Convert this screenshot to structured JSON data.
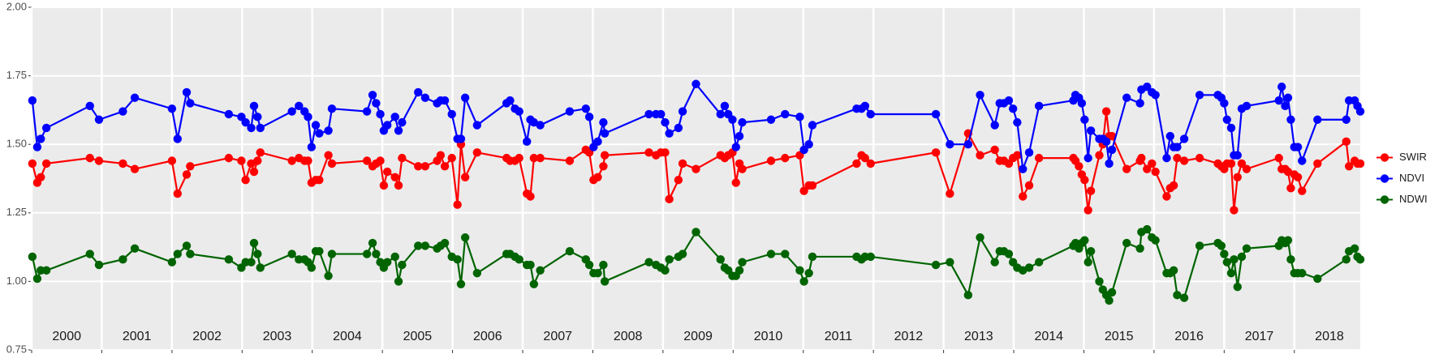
{
  "chart_data": {
    "type": "line",
    "x": [
      2000.01,
      2000.08,
      2000.13,
      2000.21,
      2000.83,
      2000.96,
      2001.3,
      2001.47,
      2002.0,
      2002.08,
      2002.21,
      2002.26,
      2002.81,
      2002.99,
      2003.05,
      2003.13,
      2003.17,
      2003.22,
      2003.26,
      2003.71,
      2003.81,
      2003.89,
      2003.94,
      2003.99,
      2004.05,
      2004.1,
      2004.23,
      2004.28,
      2004.78,
      2004.86,
      2004.91,
      2004.97,
      2005.02,
      2005.07,
      2005.18,
      2005.23,
      2005.28,
      2005.51,
      2005.61,
      2005.78,
      2005.83,
      2005.89,
      2005.99,
      2006.07,
      2006.12,
      2006.18,
      2006.35,
      2006.77,
      2006.82,
      2006.89,
      2006.95,
      2007.06,
      2007.11,
      2007.16,
      2007.25,
      2007.67,
      2007.9,
      2007.95,
      2008.01,
      2008.07,
      2008.15,
      2008.17,
      2008.8,
      2008.9,
      2008.97,
      2009.03,
      2009.09,
      2009.22,
      2009.28,
      2009.47,
      2009.82,
      2009.88,
      2009.93,
      2009.99,
      2010.04,
      2010.09,
      2010.13,
      2010.54,
      2010.74,
      2010.95,
      2011.01,
      2011.08,
      2011.13,
      2011.76,
      2011.83,
      2011.88,
      2011.96,
      2012.89,
      2013.09,
      2013.35,
      2013.52,
      2013.73,
      2013.8,
      2013.86,
      2013.93,
      2013.99,
      2014.05,
      2014.13,
      2014.22,
      2014.36,
      2014.85,
      2014.88,
      2014.93,
      2014.97,
      2015.01,
      2015.06,
      2015.1,
      2015.22,
      2015.27,
      2015.32,
      2015.36,
      2015.4,
      2015.61,
      2015.8,
      2015.82,
      2015.9,
      2015.97,
      2016.02,
      2016.18,
      2016.23,
      2016.28,
      2016.33,
      2016.43,
      2016.65,
      2016.91,
      2016.96,
      2017.0,
      2017.04,
      2017.1,
      2017.14,
      2017.19,
      2017.25,
      2017.32,
      2017.78,
      2017.82,
      2017.87,
      2017.91,
      2017.95,
      2018.0,
      2018.05,
      2018.11,
      2018.33,
      2018.74,
      2018.78,
      2018.86,
      2018.9,
      2018.94
    ],
    "series": [
      {
        "name": "SWIR",
        "color": "#ff0000",
        "values": [
          1.43,
          1.36,
          1.38,
          1.43,
          1.45,
          1.44,
          1.43,
          1.41,
          1.44,
          1.32,
          1.39,
          1.42,
          1.45,
          1.44,
          1.37,
          1.43,
          1.4,
          1.44,
          1.47,
          1.44,
          1.45,
          1.44,
          1.44,
          1.36,
          1.37,
          1.37,
          1.46,
          1.43,
          1.44,
          1.42,
          1.43,
          1.44,
          1.35,
          1.4,
          1.38,
          1.35,
          1.45,
          1.42,
          1.42,
          1.44,
          1.46,
          1.42,
          1.45,
          1.28,
          1.5,
          1.38,
          1.47,
          1.45,
          1.44,
          1.44,
          1.45,
          1.32,
          1.31,
          1.45,
          1.45,
          1.44,
          1.48,
          1.47,
          1.37,
          1.38,
          1.42,
          1.46,
          1.47,
          1.46,
          1.47,
          1.47,
          1.3,
          1.37,
          1.43,
          1.41,
          1.46,
          1.45,
          1.46,
          1.47,
          1.36,
          1.43,
          1.41,
          1.44,
          1.45,
          1.46,
          1.33,
          1.35,
          1.35,
          1.43,
          1.46,
          1.45,
          1.43,
          1.47,
          1.32,
          1.54,
          1.46,
          1.48,
          1.44,
          1.44,
          1.43,
          1.45,
          1.46,
          1.31,
          1.35,
          1.45,
          1.45,
          1.44,
          1.42,
          1.39,
          1.37,
          1.26,
          1.33,
          1.46,
          1.5,
          1.62,
          1.53,
          1.53,
          1.41,
          1.44,
          1.45,
          1.41,
          1.43,
          1.4,
          1.31,
          1.34,
          1.35,
          1.45,
          1.44,
          1.45,
          1.43,
          1.42,
          1.41,
          1.43,
          1.43,
          1.26,
          1.38,
          1.43,
          1.41,
          1.45,
          1.41,
          1.41,
          1.4,
          1.34,
          1.39,
          1.38,
          1.33,
          1.43,
          1.51,
          1.42,
          1.44,
          1.43,
          1.43
        ]
      },
      {
        "name": "NDVI",
        "color": "#0000ff",
        "values": [
          1.66,
          1.49,
          1.52,
          1.56,
          1.64,
          1.59,
          1.62,
          1.67,
          1.63,
          1.52,
          1.69,
          1.65,
          1.61,
          1.6,
          1.58,
          1.56,
          1.64,
          1.6,
          1.56,
          1.62,
          1.64,
          1.62,
          1.6,
          1.49,
          1.57,
          1.54,
          1.55,
          1.63,
          1.62,
          1.68,
          1.65,
          1.61,
          1.55,
          1.57,
          1.6,
          1.55,
          1.58,
          1.69,
          1.67,
          1.65,
          1.66,
          1.66,
          1.61,
          1.52,
          1.52,
          1.67,
          1.57,
          1.65,
          1.66,
          1.63,
          1.62,
          1.51,
          1.59,
          1.58,
          1.57,
          1.62,
          1.63,
          1.6,
          1.49,
          1.51,
          1.58,
          1.54,
          1.61,
          1.61,
          1.61,
          1.58,
          1.54,
          1.56,
          1.62,
          1.72,
          1.61,
          1.64,
          1.61,
          1.59,
          1.49,
          1.53,
          1.58,
          1.59,
          1.61,
          1.6,
          1.48,
          1.5,
          1.57,
          1.63,
          1.63,
          1.64,
          1.61,
          1.61,
          1.5,
          1.5,
          1.68,
          1.57,
          1.65,
          1.65,
          1.66,
          1.63,
          1.58,
          1.41,
          1.47,
          1.64,
          1.66,
          1.68,
          1.67,
          1.65,
          1.59,
          1.45,
          1.55,
          1.52,
          1.52,
          1.51,
          1.43,
          1.48,
          1.67,
          1.65,
          1.7,
          1.71,
          1.69,
          1.68,
          1.45,
          1.53,
          1.49,
          1.49,
          1.52,
          1.68,
          1.68,
          1.67,
          1.65,
          1.59,
          1.56,
          1.46,
          1.46,
          1.63,
          1.64,
          1.66,
          1.71,
          1.64,
          1.67,
          1.59,
          1.49,
          1.49,
          1.44,
          1.59,
          1.59,
          1.66,
          1.66,
          1.64,
          1.62
        ]
      },
      {
        "name": "NDWI",
        "color": "#006400",
        "values": [
          1.09,
          1.01,
          1.04,
          1.04,
          1.1,
          1.06,
          1.08,
          1.12,
          1.07,
          1.1,
          1.13,
          1.1,
          1.08,
          1.05,
          1.07,
          1.07,
          1.14,
          1.1,
          1.05,
          1.1,
          1.08,
          1.08,
          1.07,
          1.05,
          1.11,
          1.11,
          1.02,
          1.1,
          1.1,
          1.14,
          1.1,
          1.07,
          1.05,
          1.07,
          1.09,
          1.0,
          1.06,
          1.13,
          1.13,
          1.12,
          1.13,
          1.14,
          1.09,
          1.08,
          0.99,
          1.16,
          1.03,
          1.1,
          1.1,
          1.09,
          1.08,
          1.06,
          1.06,
          0.99,
          1.04,
          1.11,
          1.08,
          1.06,
          1.03,
          1.03,
          1.06,
          1.0,
          1.07,
          1.06,
          1.05,
          1.04,
          1.08,
          1.09,
          1.1,
          1.18,
          1.08,
          1.05,
          1.04,
          1.02,
          1.02,
          1.04,
          1.07,
          1.1,
          1.1,
          1.04,
          1.0,
          1.03,
          1.09,
          1.09,
          1.08,
          1.09,
          1.09,
          1.06,
          1.07,
          0.95,
          1.16,
          1.07,
          1.11,
          1.11,
          1.1,
          1.07,
          1.05,
          1.04,
          1.05,
          1.07,
          1.13,
          1.14,
          1.12,
          1.14,
          1.15,
          1.07,
          1.11,
          1.0,
          0.97,
          0.95,
          0.93,
          0.96,
          1.14,
          1.12,
          1.18,
          1.19,
          1.16,
          1.15,
          1.03,
          1.03,
          1.04,
          0.95,
          0.94,
          1.13,
          1.14,
          1.13,
          1.1,
          1.07,
          1.03,
          1.08,
          0.98,
          1.09,
          1.12,
          1.13,
          1.15,
          1.14,
          1.15,
          1.08,
          1.03,
          1.03,
          1.03,
          1.01,
          1.08,
          1.11,
          1.12,
          1.09,
          1.08
        ]
      }
    ],
    "xlim": [
      2000,
      2018.94
    ],
    "xticks": [
      2000,
      2001,
      2002,
      2003,
      2004,
      2005,
      2006,
      2007,
      2008,
      2009,
      2010,
      2011,
      2012,
      2013,
      2014,
      2015,
      2016,
      2017,
      2018
    ],
    "ylim": [
      0.75,
      2.0
    ],
    "yticks": [
      {
        "value": 0.75,
        "label": "0.75"
      },
      {
        "value": 1.0,
        "label": "1.00"
      },
      {
        "value": 1.25,
        "label": "1.25"
      },
      {
        "value": 1.5,
        "label": "1.50"
      },
      {
        "value": 1.75,
        "label": "1.75"
      },
      {
        "value": 2.0,
        "label": "2.00"
      }
    ],
    "grid": true,
    "legend": "right"
  }
}
